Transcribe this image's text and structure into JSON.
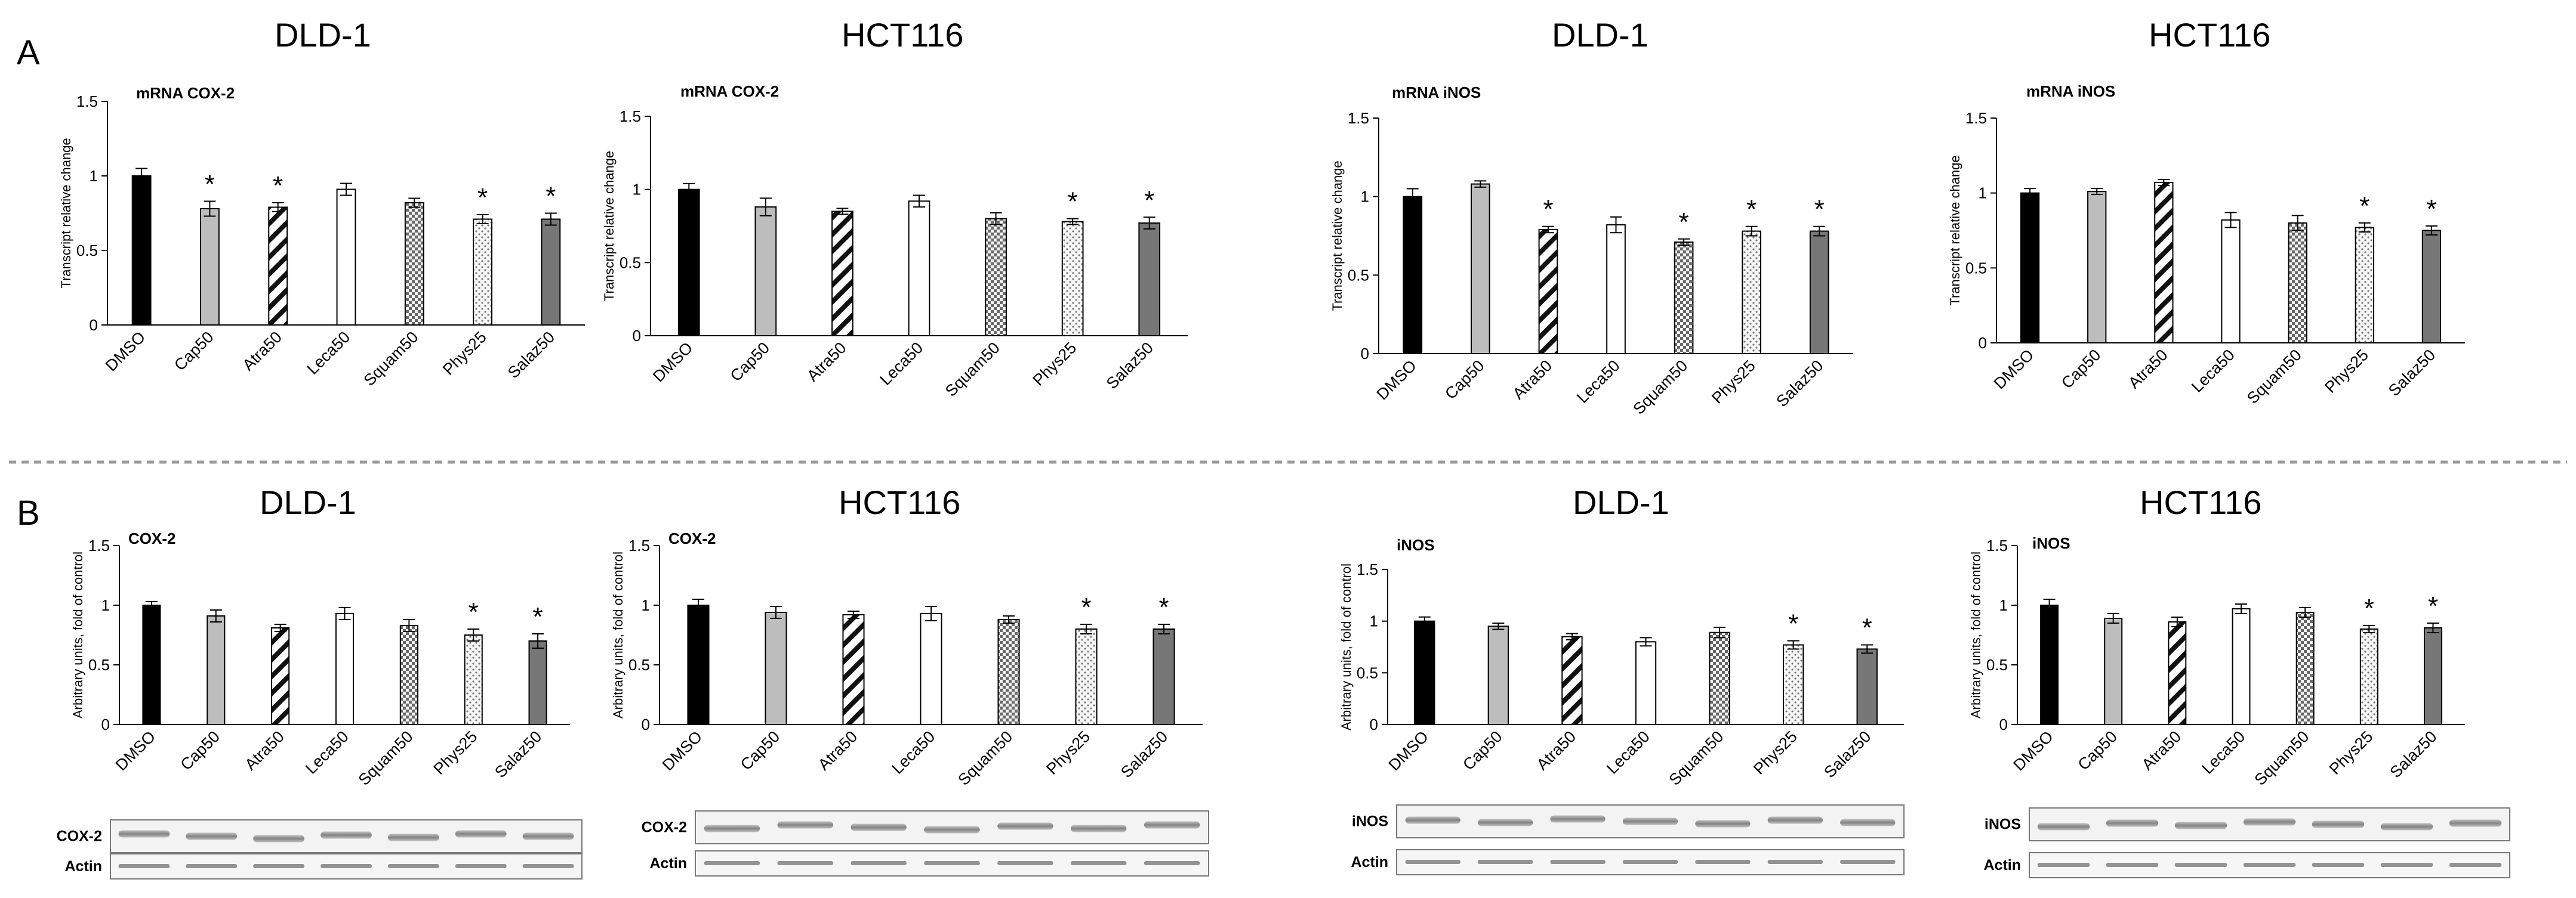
{
  "panel_labels": {
    "a": "A",
    "b": "B"
  },
  "blot": {
    "cox2_label": "COX-2",
    "inos_label": "iNOS",
    "actin_label": "Actin"
  },
  "chart_data": [
    {
      "type": "bar",
      "title": "DLD-1",
      "subtitle": "mRNA COX-2",
      "ylabel": "Transcript relative change",
      "xlabel": "",
      "ylim": [
        0,
        1.5
      ],
      "yticks": [
        0,
        0.5,
        1,
        1.5
      ],
      "categories": [
        "DMSO",
        "Cap50",
        "Atra50",
        "Leca50",
        "Squam50",
        "Phys25",
        "Salaz50"
      ],
      "values": [
        1.0,
        0.78,
        0.79,
        0.91,
        0.82,
        0.71,
        0.71
      ],
      "errors": [
        0.05,
        0.05,
        0.03,
        0.04,
        0.03,
        0.03,
        0.04
      ],
      "significant": [
        "",
        "*",
        "*",
        "",
        "",
        "*",
        "*"
      ]
    },
    {
      "type": "bar",
      "title": "HCT116",
      "subtitle": "mRNA COX-2",
      "ylabel": "Transcript relative change",
      "xlabel": "",
      "ylim": [
        0,
        1.5
      ],
      "yticks": [
        0,
        0.5,
        1,
        1.5
      ],
      "categories": [
        "DMSO",
        "Cap50",
        "Atra50",
        "Leca50",
        "Squam50",
        "Phys25",
        "Salaz50"
      ],
      "values": [
        1.0,
        0.88,
        0.85,
        0.92,
        0.8,
        0.78,
        0.77
      ],
      "errors": [
        0.04,
        0.06,
        0.02,
        0.04,
        0.04,
        0.02,
        0.04
      ],
      "significant": [
        "",
        "",
        "",
        "",
        "",
        "*",
        "*"
      ]
    },
    {
      "type": "bar",
      "title": "DLD-1",
      "subtitle": "mRNA iNOS",
      "ylabel": "Transcript relative change",
      "xlabel": "",
      "ylim": [
        0,
        1.5
      ],
      "yticks": [
        0,
        0.5,
        1,
        1.5
      ],
      "categories": [
        "DMSO",
        "Cap50",
        "Atra50",
        "Leca50",
        "Squam50",
        "Phys25",
        "Salaz50"
      ],
      "values": [
        1.0,
        1.08,
        0.79,
        0.82,
        0.71,
        0.78,
        0.78
      ],
      "errors": [
        0.05,
        0.02,
        0.02,
        0.05,
        0.02,
        0.03,
        0.03
      ],
      "significant": [
        "",
        "",
        "*",
        "",
        "*",
        "*",
        "*"
      ]
    },
    {
      "type": "bar",
      "title": "HCT116",
      "subtitle": "mRNA iNOS",
      "ylabel": "Transcript relative change",
      "xlabel": "",
      "ylim": [
        0,
        1.5
      ],
      "yticks": [
        0,
        0.5,
        1,
        1.5
      ],
      "categories": [
        "DMSO",
        "Cap50",
        "Atra50",
        "Leca50",
        "Squam50",
        "Phys25",
        "Salaz50"
      ],
      "values": [
        1.0,
        1.01,
        1.07,
        0.82,
        0.8,
        0.77,
        0.75
      ],
      "errors": [
        0.03,
        0.02,
        0.02,
        0.05,
        0.05,
        0.03,
        0.03
      ],
      "significant": [
        "",
        "",
        "",
        "",
        "",
        "*",
        "*"
      ]
    },
    {
      "type": "bar",
      "title": "DLD-1",
      "subtitle": "COX-2",
      "ylabel": "Arbitrary units, fold of control",
      "xlabel": "",
      "ylim": [
        0,
        1.5
      ],
      "yticks": [
        0,
        0.5,
        1,
        1.5
      ],
      "categories": [
        "DMSO",
        "Cap50",
        "Atra50",
        "Leca50",
        "Squam50",
        "Phys25",
        "Salaz50"
      ],
      "values": [
        1.0,
        0.91,
        0.81,
        0.93,
        0.83,
        0.75,
        0.7
      ],
      "errors": [
        0.03,
        0.05,
        0.03,
        0.05,
        0.05,
        0.05,
        0.06
      ],
      "significant": [
        "",
        "",
        "",
        "",
        "",
        "*",
        "*"
      ]
    },
    {
      "type": "bar",
      "title": "HCT116",
      "subtitle": "COX-2",
      "ylabel": "Arbitrary units, fold of control",
      "xlabel": "",
      "ylim": [
        0,
        1.5
      ],
      "yticks": [
        0,
        0.5,
        1,
        1.5
      ],
      "categories": [
        "DMSO",
        "Cap50",
        "Atra50",
        "Leca50",
        "Squam50",
        "Phys25",
        "Salaz50"
      ],
      "values": [
        1.0,
        0.94,
        0.92,
        0.93,
        0.88,
        0.8,
        0.8
      ],
      "errors": [
        0.05,
        0.05,
        0.03,
        0.06,
        0.03,
        0.04,
        0.04
      ],
      "significant": [
        "",
        "",
        "",
        "",
        "",
        "*",
        "*"
      ]
    },
    {
      "type": "bar",
      "title": "DLD-1",
      "subtitle": "iNOS",
      "ylabel": "Arbitrary units, fold of control",
      "xlabel": "",
      "ylim": [
        0,
        1.5
      ],
      "yticks": [
        0,
        0.5,
        1,
        1.5
      ],
      "categories": [
        "DMSO",
        "Cap50",
        "Atra50",
        "Leca50",
        "Squam50",
        "Phys25",
        "Salaz50"
      ],
      "values": [
        1.0,
        0.95,
        0.85,
        0.8,
        0.89,
        0.77,
        0.73
      ],
      "errors": [
        0.04,
        0.03,
        0.03,
        0.04,
        0.05,
        0.04,
        0.04
      ],
      "significant": [
        "",
        "",
        "",
        "",
        "",
        "*",
        "*"
      ]
    },
    {
      "type": "bar",
      "title": "HCT116",
      "subtitle": "iNOS",
      "ylabel": "Arbitrary units, fold of control",
      "xlabel": "",
      "ylim": [
        0,
        1.5
      ],
      "yticks": [
        0,
        0.5,
        1,
        1.5
      ],
      "categories": [
        "DMSO",
        "Cap50",
        "Atra50",
        "Leca50",
        "Squam50",
        "Phys25",
        "Salaz50"
      ],
      "values": [
        1.0,
        0.89,
        0.86,
        0.97,
        0.94,
        0.8,
        0.81
      ],
      "errors": [
        0.05,
        0.04,
        0.04,
        0.04,
        0.04,
        0.03,
        0.04
      ],
      "significant": [
        "",
        "",
        "",
        "",
        "",
        "*",
        "*"
      ]
    }
  ]
}
